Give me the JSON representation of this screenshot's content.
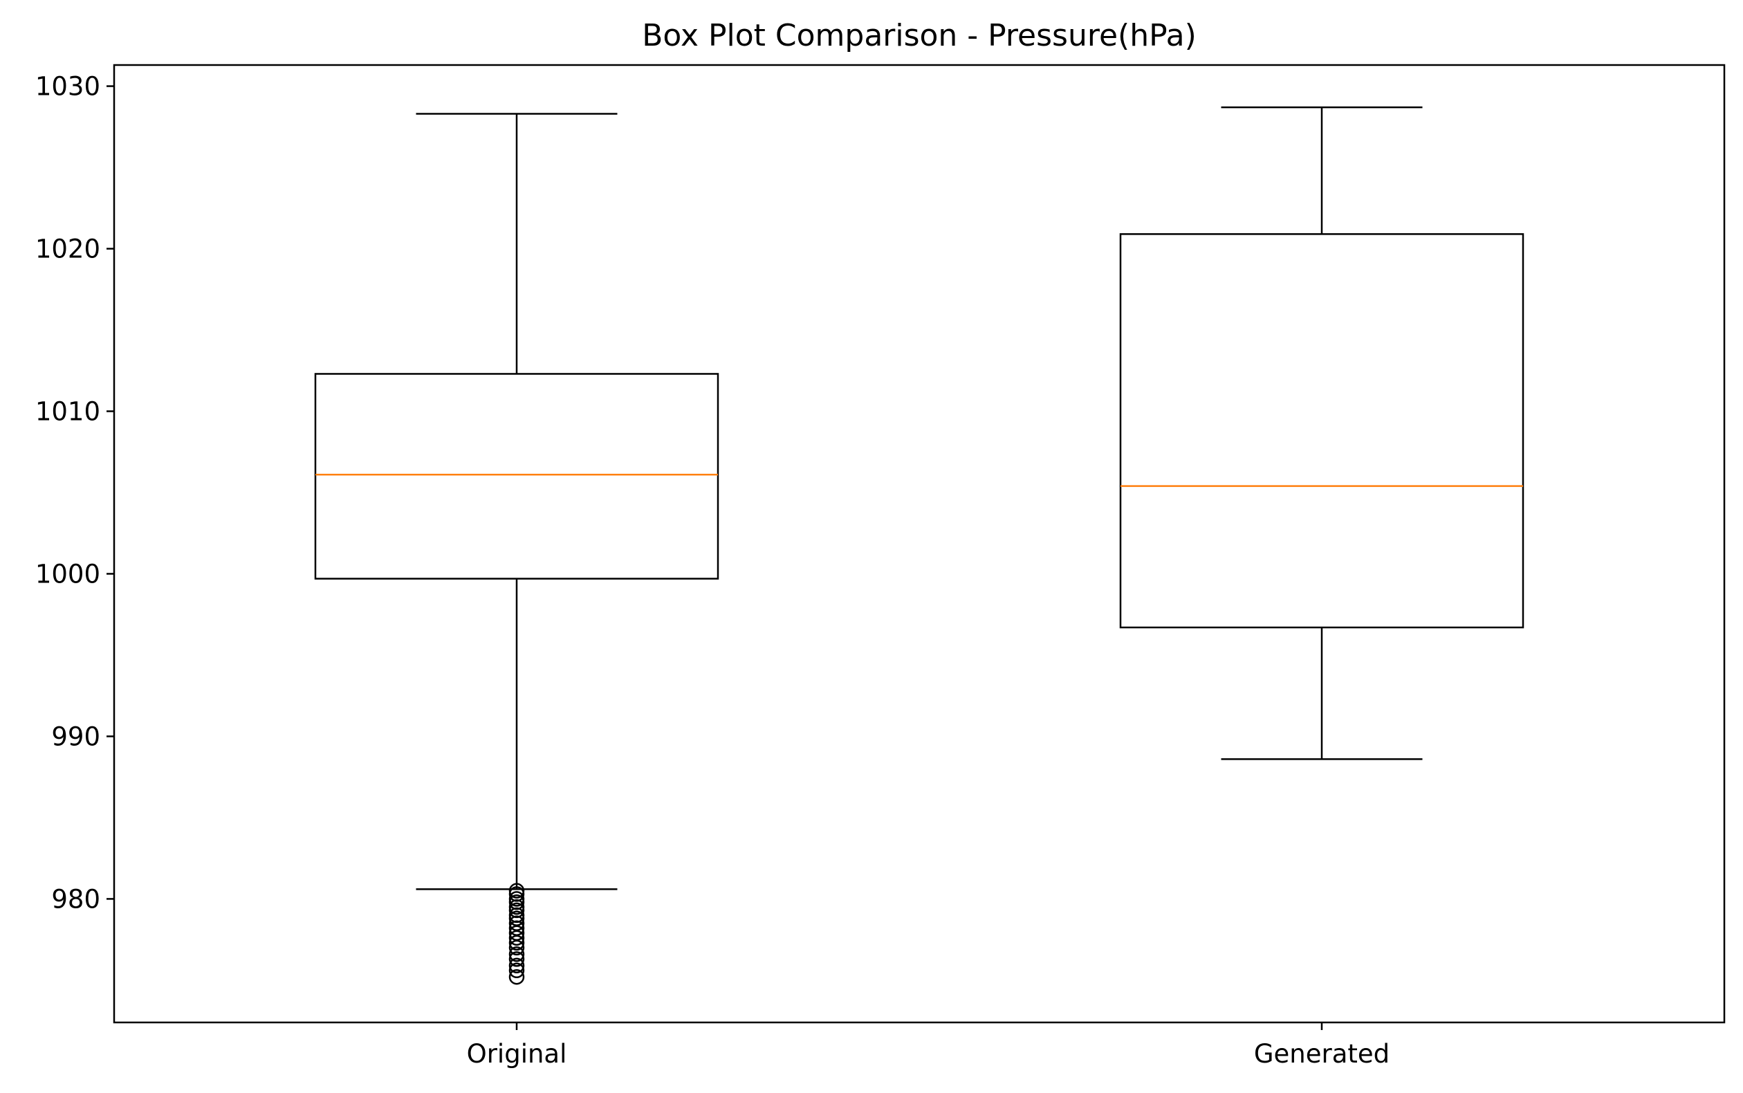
{
  "chart_data": {
    "type": "box",
    "title": "Box Plot Comparison - Pressure(hPa)",
    "xlabel": "",
    "ylabel": "",
    "categories": [
      "Original",
      "Generated"
    ],
    "yticks": [
      980,
      990,
      1000,
      1010,
      1020,
      1030
    ],
    "ylim": [
      972.4,
      1031.3
    ],
    "grid": false,
    "boxes": [
      {
        "name": "Original",
        "whisker_low": 980.6,
        "q1": 999.7,
        "median": 1006.1,
        "q3": 1012.3,
        "whisker_high": 1028.3,
        "outliers": [
          980.5,
          980.3,
          980.0,
          979.8,
          979.5,
          979.3,
          979.0,
          978.8,
          978.5,
          978.2,
          977.9,
          977.6,
          977.3,
          977.0,
          976.6,
          976.3,
          975.9,
          975.6,
          975.2
        ]
      },
      {
        "name": "Generated",
        "whisker_low": 988.6,
        "q1": 996.7,
        "median": 1005.4,
        "q3": 1020.9,
        "whisker_high": 1028.7,
        "outliers": []
      }
    ],
    "colors": {
      "box": "#000000",
      "median": "#ff7f0e",
      "outlier": "#000000"
    }
  }
}
